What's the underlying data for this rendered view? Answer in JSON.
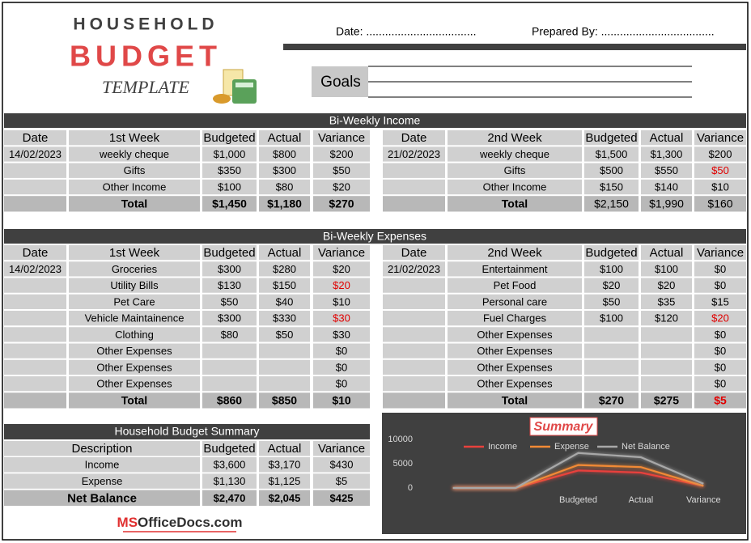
{
  "header": {
    "title_top": "HOUSEHOLD",
    "title_main": "BUDGET",
    "title_sub": "TEMPLATE",
    "date": "Date: ...................................",
    "prepared_by": "Prepared By: ....................................",
    "goals": "Goals"
  },
  "alert_color": "#e00000",
  "income": {
    "title": "Bi-Weekly Income",
    "blocks": [
      {
        "columns": [
          "Date",
          "1st Week",
          "Budgeted",
          "Actual",
          "Variance"
        ],
        "rows": [
          [
            "14/02/2023",
            "weekly cheque",
            "$1,000",
            "$800",
            "$200"
          ],
          [
            null,
            "Gifts",
            "$350",
            "$300",
            "$50"
          ],
          [
            null,
            "Other Income",
            "$100",
            "$80",
            "$20"
          ]
        ],
        "total": [
          null,
          "Total",
          "$1,450",
          "$1,180",
          "$270"
        ],
        "red_rows": [],
        "total_red": false,
        "total_bold": true
      },
      {
        "columns": [
          "Date",
          "2nd Week",
          "Budgeted",
          "Actual",
          "Variance"
        ],
        "rows": [
          [
            "21/02/2023",
            "weekly cheque",
            "$1,500",
            "$1,300",
            "$200"
          ],
          [
            null,
            "Gifts",
            "$500",
            "$550",
            "$50"
          ],
          [
            null,
            "Other Income",
            "$150",
            "$140",
            "$10"
          ]
        ],
        "total": [
          null,
          "Total",
          "$2,150",
          "$1,990",
          "$160"
        ],
        "red_rows": [
          1
        ],
        "total_red": false,
        "total_bold": false
      }
    ]
  },
  "expenses": {
    "title": "Bi-Weekly Expenses",
    "blocks": [
      {
        "columns": [
          "Date",
          "1st Week",
          "Budgeted",
          "Actual",
          "Variance"
        ],
        "rows": [
          [
            "14/02/2023",
            "Groceries",
            "$300",
            "$280",
            "$20"
          ],
          [
            null,
            "Utility Bills",
            "$130",
            "$150",
            "$20"
          ],
          [
            null,
            "Pet Care",
            "$50",
            "$40",
            "$10"
          ],
          [
            null,
            "Vehicle Maintainence",
            "$300",
            "$330",
            "$30"
          ],
          [
            null,
            "Clothing",
            "$80",
            "$50",
            "$30"
          ],
          [
            null,
            "Other Expenses",
            null,
            null,
            "$0"
          ],
          [
            null,
            "Other Expenses",
            null,
            null,
            "$0"
          ],
          [
            null,
            "Other Expenses",
            null,
            null,
            "$0"
          ]
        ],
        "total": [
          null,
          "Total",
          "$860",
          "$850",
          "$10"
        ],
        "red_rows": [
          1,
          3
        ],
        "total_red": false,
        "total_bold": true
      },
      {
        "columns": [
          "Date",
          "2nd Week",
          "Budgeted",
          "Actual",
          "Variance"
        ],
        "rows": [
          [
            "21/02/2023",
            "Entertainment",
            "$100",
            "$100",
            "$0"
          ],
          [
            null,
            "Pet Food",
            "$20",
            "$20",
            "$0"
          ],
          [
            null,
            "Personal care",
            "$50",
            "$35",
            "$15"
          ],
          [
            null,
            "Fuel Charges",
            "$100",
            "$120",
            "$20"
          ],
          [
            null,
            "Other Expenses",
            null,
            null,
            "$0"
          ],
          [
            null,
            "Other Expenses",
            null,
            null,
            "$0"
          ],
          [
            null,
            "Other Expenses",
            null,
            null,
            "$0"
          ],
          [
            null,
            "Other Expenses",
            null,
            null,
            "$0"
          ]
        ],
        "total": [
          null,
          "Total",
          "$270",
          "$275",
          "$5"
        ],
        "red_rows": [
          3
        ],
        "total_red": true,
        "total_bold": true
      }
    ]
  },
  "summary": {
    "title": "Household Budget Summary",
    "columns": [
      "Description",
      "Budgeted",
      "Actual",
      "Variance"
    ],
    "rows": [
      [
        "Income",
        "$3,600",
        "$3,170",
        "$430"
      ],
      [
        "Expense",
        "$1,130",
        "$1,125",
        "$5"
      ],
      [
        "Net Balance",
        "$2,470",
        "$2,045",
        "$425"
      ]
    ]
  },
  "logo": {
    "ms": "MS",
    "rest": "OfficeDocs.com"
  },
  "chart_data": {
    "type": "line",
    "stacked": true,
    "title": "Summary",
    "categories": [
      null,
      null,
      "Budgeted",
      "Actual",
      "Variance"
    ],
    "series": [
      {
        "name": "Income",
        "color": "#e8413c",
        "values": [
          0,
          0,
          3600,
          3170,
          430
        ]
      },
      {
        "name": "Expense",
        "color": "#f28a35",
        "values": [
          0,
          0,
          1130,
          1125,
          5
        ]
      },
      {
        "name": "Net Balance",
        "color": "#a8a8a8",
        "values": [
          0,
          0,
          2470,
          2045,
          425
        ]
      }
    ],
    "ylim": [
      0,
      10000
    ],
    "yticks": [
      0,
      5000,
      10000
    ],
    "legend": "top",
    "grid": false
  }
}
